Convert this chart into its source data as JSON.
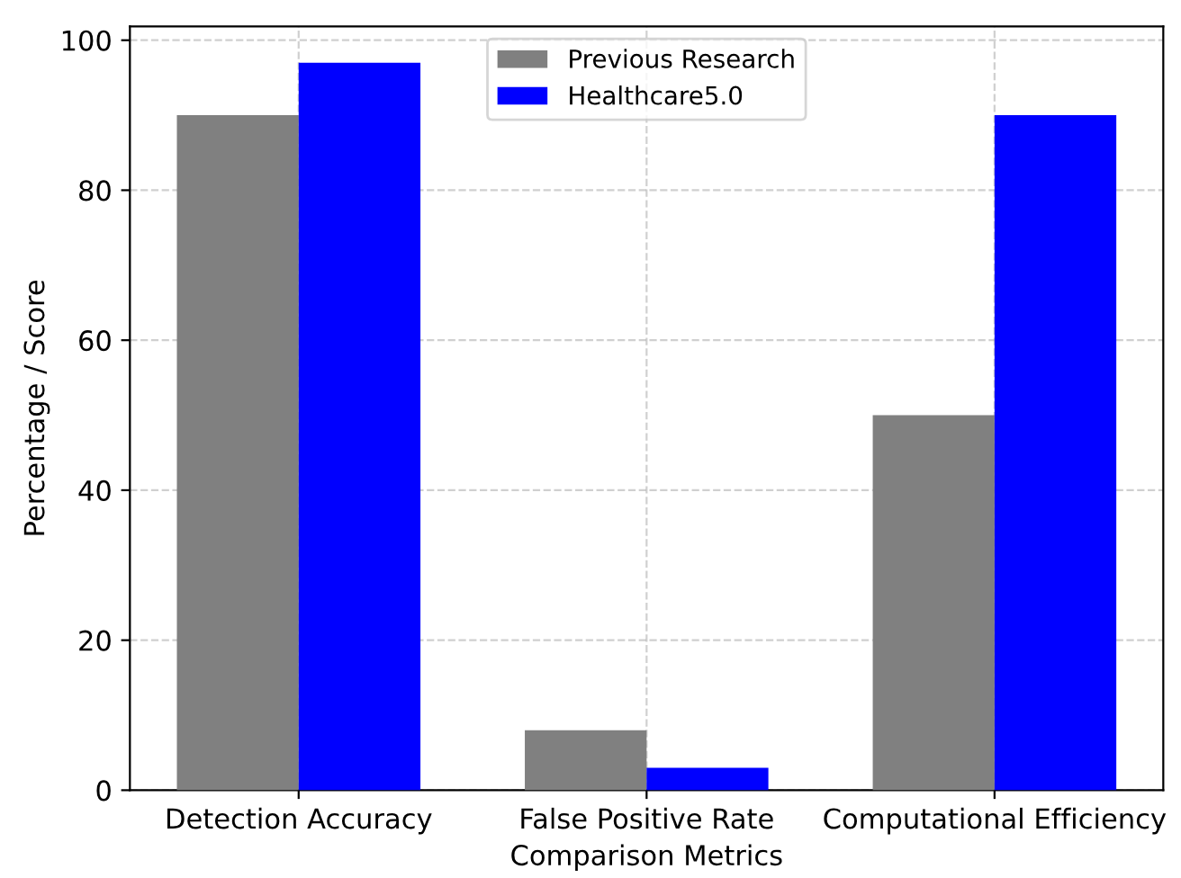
{
  "chart_data": {
    "type": "bar",
    "xlabel": "Comparison Metrics",
    "ylabel": "Percentage / Score",
    "categories": [
      "Detection Accuracy",
      "False Positive Rate",
      "Computational Efficiency"
    ],
    "series": [
      {
        "name": "Previous Research",
        "color": "#808080",
        "values": [
          90,
          8,
          50
        ]
      },
      {
        "name": "Healthcare5.0",
        "color": "#0000ff",
        "values": [
          97,
          3,
          90
        ]
      }
    ],
    "ylim": [
      0,
      101.85
    ],
    "yticks": [
      0,
      20,
      40,
      60,
      80,
      100
    ],
    "grid": true,
    "legend": "top"
  }
}
